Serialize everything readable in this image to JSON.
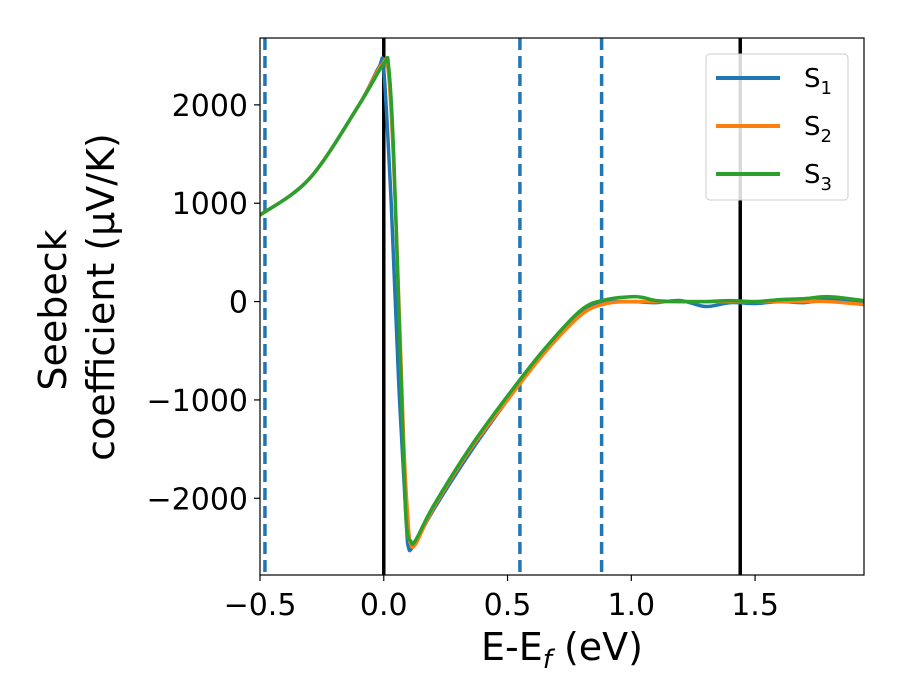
{
  "chart_data": {
    "type": "line",
    "xlabel": "E-E",
    "xlabel_sub": "f",
    "xlabel_unit": " (eV)",
    "ylabel_line1": "Seebeck",
    "ylabel_line2": "coefficient  (μV/K)",
    "xlim": [
      -0.5,
      1.94
    ],
    "ylim": [
      -2780,
      2680
    ],
    "xticks": [
      -0.5,
      0.0,
      0.5,
      1.0,
      1.5
    ],
    "xtick_labels": [
      "−0.5",
      "0.0",
      "0.5",
      "1.0",
      "1.5"
    ],
    "yticks": [
      2000,
      1000,
      0,
      -1000,
      -2000
    ],
    "ytick_labels": [
      "2000",
      "1000",
      "0",
      "−1000",
      "−2000"
    ],
    "grid": false,
    "legend_position": "top-right",
    "vlines": [
      {
        "x": 0.0,
        "style": "solid",
        "color": "#000000"
      },
      {
        "x": 1.44,
        "style": "solid",
        "color": "#000000"
      },
      {
        "x": -0.48,
        "style": "dashed",
        "color": "#1f77b4"
      },
      {
        "x": 0.55,
        "style": "dashed",
        "color": "#1f77b4"
      },
      {
        "x": 0.88,
        "style": "dashed",
        "color": "#1f77b4"
      }
    ],
    "series": [
      {
        "name": "S",
        "sub": "1",
        "color": "#1f77b4",
        "x": [
          -0.5,
          -0.3,
          -0.1,
          -0.02,
          0.0,
          0.03,
          0.06,
          0.09,
          0.1,
          0.12,
          0.2,
          0.35,
          0.5,
          0.65,
          0.8,
          0.9,
          1.0,
          1.1,
          1.2,
          1.3,
          1.4,
          1.5,
          1.6,
          1.7,
          1.8,
          1.94
        ],
        "y": [
          880,
          1250,
          2000,
          2380,
          2350,
          1000,
          -800,
          -2200,
          -2500,
          -2480,
          -2120,
          -1530,
          -1000,
          -500,
          -100,
          -10,
          0,
          -10,
          10,
          -50,
          -10,
          -20,
          0,
          -10,
          20,
          -20
        ]
      },
      {
        "name": "S",
        "sub": "2",
        "color": "#ff7f0e",
        "x": [
          -0.5,
          -0.3,
          -0.1,
          -0.01,
          0.02,
          0.05,
          0.08,
          0.1,
          0.11,
          0.13,
          0.2,
          0.35,
          0.5,
          0.65,
          0.8,
          0.9,
          1.0,
          1.1,
          1.2,
          1.3,
          1.4,
          1.5,
          1.6,
          1.7,
          1.8,
          1.94
        ],
        "y": [
          880,
          1250,
          2000,
          2400,
          2300,
          800,
          -1400,
          -2300,
          -2470,
          -2460,
          -2100,
          -1500,
          -1000,
          -520,
          -130,
          -20,
          0,
          0,
          0,
          0,
          0,
          0,
          0,
          0,
          0,
          -30
        ]
      },
      {
        "name": "S",
        "sub": "3",
        "color": "#2ca02c",
        "x": [
          -0.5,
          -0.3,
          -0.1,
          0.0,
          0.02,
          0.04,
          0.07,
          0.09,
          0.11,
          0.13,
          0.2,
          0.35,
          0.5,
          0.65,
          0.8,
          0.9,
          1.0,
          1.05,
          1.1,
          1.2,
          1.3,
          1.4,
          1.5,
          1.6,
          1.7,
          1.8,
          1.94
        ],
        "y": [
          880,
          1250,
          2000,
          2420,
          2380,
          1500,
          -800,
          -2200,
          -2440,
          -2420,
          -2080,
          -1480,
          -960,
          -480,
          -80,
          20,
          50,
          40,
          10,
          0,
          0,
          10,
          0,
          20,
          30,
          50,
          10
        ]
      }
    ]
  }
}
